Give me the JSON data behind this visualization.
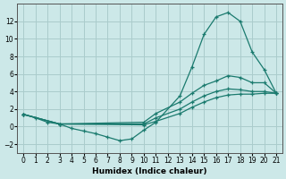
{
  "xlabel": "Humidex (Indice chaleur)",
  "bg_color": "#cce8e8",
  "grid_color": "#aacccc",
  "line_color": "#1a7a6e",
  "xlim": [
    -0.5,
    21.5
  ],
  "ylim": [
    -3,
    14
  ],
  "xticks": [
    0,
    1,
    2,
    3,
    4,
    5,
    6,
    7,
    8,
    9,
    10,
    11,
    12,
    13,
    14,
    15,
    16,
    17,
    18,
    19,
    20,
    21
  ],
  "yticks": [
    -2,
    0,
    2,
    4,
    6,
    8,
    10,
    12
  ],
  "line1_x": [
    0,
    1,
    2,
    3,
    4,
    5,
    6,
    7,
    8,
    9,
    10,
    11,
    13,
    14,
    15,
    16,
    17,
    18,
    19,
    20,
    21
  ],
  "line1_y": [
    1.4,
    1.0,
    0.5,
    0.3,
    -0.2,
    -0.5,
    -0.8,
    -1.2,
    -1.6,
    -1.4,
    -0.4,
    0.5,
    3.5,
    6.8,
    10.5,
    12.5,
    13.0,
    12.0,
    8.5,
    6.5,
    3.8
  ],
  "line2_x": [
    0,
    3,
    10,
    11,
    13,
    14,
    15,
    16,
    17,
    18,
    19,
    20,
    21
  ],
  "line2_y": [
    1.4,
    0.3,
    0.5,
    1.5,
    2.8,
    3.8,
    4.7,
    5.2,
    5.8,
    5.6,
    5.0,
    5.0,
    3.8
  ],
  "line3_x": [
    0,
    3,
    10,
    11,
    13,
    14,
    15,
    16,
    17,
    18,
    19,
    20,
    21
  ],
  "line3_y": [
    1.4,
    0.3,
    0.3,
    1.0,
    2.0,
    2.8,
    3.5,
    4.0,
    4.3,
    4.2,
    4.0,
    4.0,
    3.8
  ],
  "line4_x": [
    0,
    3,
    10,
    11,
    13,
    14,
    15,
    16,
    17,
    18,
    19,
    20,
    21
  ],
  "line4_y": [
    1.4,
    0.3,
    0.2,
    0.6,
    1.5,
    2.2,
    2.8,
    3.3,
    3.6,
    3.7,
    3.7,
    3.8,
    3.8
  ]
}
